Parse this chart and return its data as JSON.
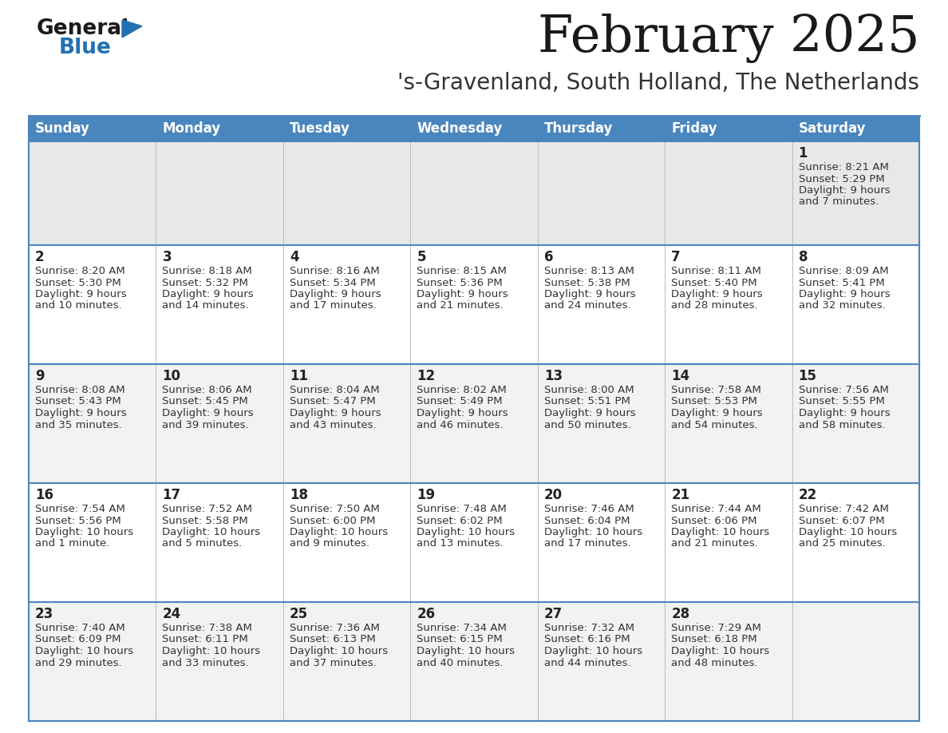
{
  "title": "February 2025",
  "subtitle": "'s-Gravenland, South Holland, The Netherlands",
  "header_bg": "#4a86be",
  "header_text_color": "#ffffff",
  "day_names": [
    "Sunday",
    "Monday",
    "Tuesday",
    "Wednesday",
    "Thursday",
    "Friday",
    "Saturday"
  ],
  "row0_bg": "#e8e8e8",
  "odd_row_bg": "#f2f2f2",
  "even_row_bg": "#ffffff",
  "cell_text_color": "#333333",
  "day_num_color": "#222222",
  "title_color": "#1a1a1a",
  "subtitle_color": "#333333",
  "divider_color": "#4a86be",
  "logo_general_color": "#1a1a1a",
  "logo_blue_color": "#2271b3",
  "calendar_data": [
    [
      null,
      null,
      null,
      null,
      null,
      null,
      {
        "day": 1,
        "sunrise": "8:21 AM",
        "sunset": "5:29 PM",
        "daylight": "9 hours and 7 minutes."
      }
    ],
    [
      {
        "day": 2,
        "sunrise": "8:20 AM",
        "sunset": "5:30 PM",
        "daylight": "9 hours and 10 minutes."
      },
      {
        "day": 3,
        "sunrise": "8:18 AM",
        "sunset": "5:32 PM",
        "daylight": "9 hours and 14 minutes."
      },
      {
        "day": 4,
        "sunrise": "8:16 AM",
        "sunset": "5:34 PM",
        "daylight": "9 hours and 17 minutes."
      },
      {
        "day": 5,
        "sunrise": "8:15 AM",
        "sunset": "5:36 PM",
        "daylight": "9 hours and 21 minutes."
      },
      {
        "day": 6,
        "sunrise": "8:13 AM",
        "sunset": "5:38 PM",
        "daylight": "9 hours and 24 minutes."
      },
      {
        "day": 7,
        "sunrise": "8:11 AM",
        "sunset": "5:40 PM",
        "daylight": "9 hours and 28 minutes."
      },
      {
        "day": 8,
        "sunrise": "8:09 AM",
        "sunset": "5:41 PM",
        "daylight": "9 hours and 32 minutes."
      }
    ],
    [
      {
        "day": 9,
        "sunrise": "8:08 AM",
        "sunset": "5:43 PM",
        "daylight": "9 hours and 35 minutes."
      },
      {
        "day": 10,
        "sunrise": "8:06 AM",
        "sunset": "5:45 PM",
        "daylight": "9 hours and 39 minutes."
      },
      {
        "day": 11,
        "sunrise": "8:04 AM",
        "sunset": "5:47 PM",
        "daylight": "9 hours and 43 minutes."
      },
      {
        "day": 12,
        "sunrise": "8:02 AM",
        "sunset": "5:49 PM",
        "daylight": "9 hours and 46 minutes."
      },
      {
        "day": 13,
        "sunrise": "8:00 AM",
        "sunset": "5:51 PM",
        "daylight": "9 hours and 50 minutes."
      },
      {
        "day": 14,
        "sunrise": "7:58 AM",
        "sunset": "5:53 PM",
        "daylight": "9 hours and 54 minutes."
      },
      {
        "day": 15,
        "sunrise": "7:56 AM",
        "sunset": "5:55 PM",
        "daylight": "9 hours and 58 minutes."
      }
    ],
    [
      {
        "day": 16,
        "sunrise": "7:54 AM",
        "sunset": "5:56 PM",
        "daylight": "10 hours and 1 minute."
      },
      {
        "day": 17,
        "sunrise": "7:52 AM",
        "sunset": "5:58 PM",
        "daylight": "10 hours and 5 minutes."
      },
      {
        "day": 18,
        "sunrise": "7:50 AM",
        "sunset": "6:00 PM",
        "daylight": "10 hours and 9 minutes."
      },
      {
        "day": 19,
        "sunrise": "7:48 AM",
        "sunset": "6:02 PM",
        "daylight": "10 hours and 13 minutes."
      },
      {
        "day": 20,
        "sunrise": "7:46 AM",
        "sunset": "6:04 PM",
        "daylight": "10 hours and 17 minutes."
      },
      {
        "day": 21,
        "sunrise": "7:44 AM",
        "sunset": "6:06 PM",
        "daylight": "10 hours and 21 minutes."
      },
      {
        "day": 22,
        "sunrise": "7:42 AM",
        "sunset": "6:07 PM",
        "daylight": "10 hours and 25 minutes."
      }
    ],
    [
      {
        "day": 23,
        "sunrise": "7:40 AM",
        "sunset": "6:09 PM",
        "daylight": "10 hours and 29 minutes."
      },
      {
        "day": 24,
        "sunrise": "7:38 AM",
        "sunset": "6:11 PM",
        "daylight": "10 hours and 33 minutes."
      },
      {
        "day": 25,
        "sunrise": "7:36 AM",
        "sunset": "6:13 PM",
        "daylight": "10 hours and 37 minutes."
      },
      {
        "day": 26,
        "sunrise": "7:34 AM",
        "sunset": "6:15 PM",
        "daylight": "10 hours and 40 minutes."
      },
      {
        "day": 27,
        "sunrise": "7:32 AM",
        "sunset": "6:16 PM",
        "daylight": "10 hours and 44 minutes."
      },
      {
        "day": 28,
        "sunrise": "7:29 AM",
        "sunset": "6:18 PM",
        "daylight": "10 hours and 48 minutes."
      },
      null
    ]
  ]
}
